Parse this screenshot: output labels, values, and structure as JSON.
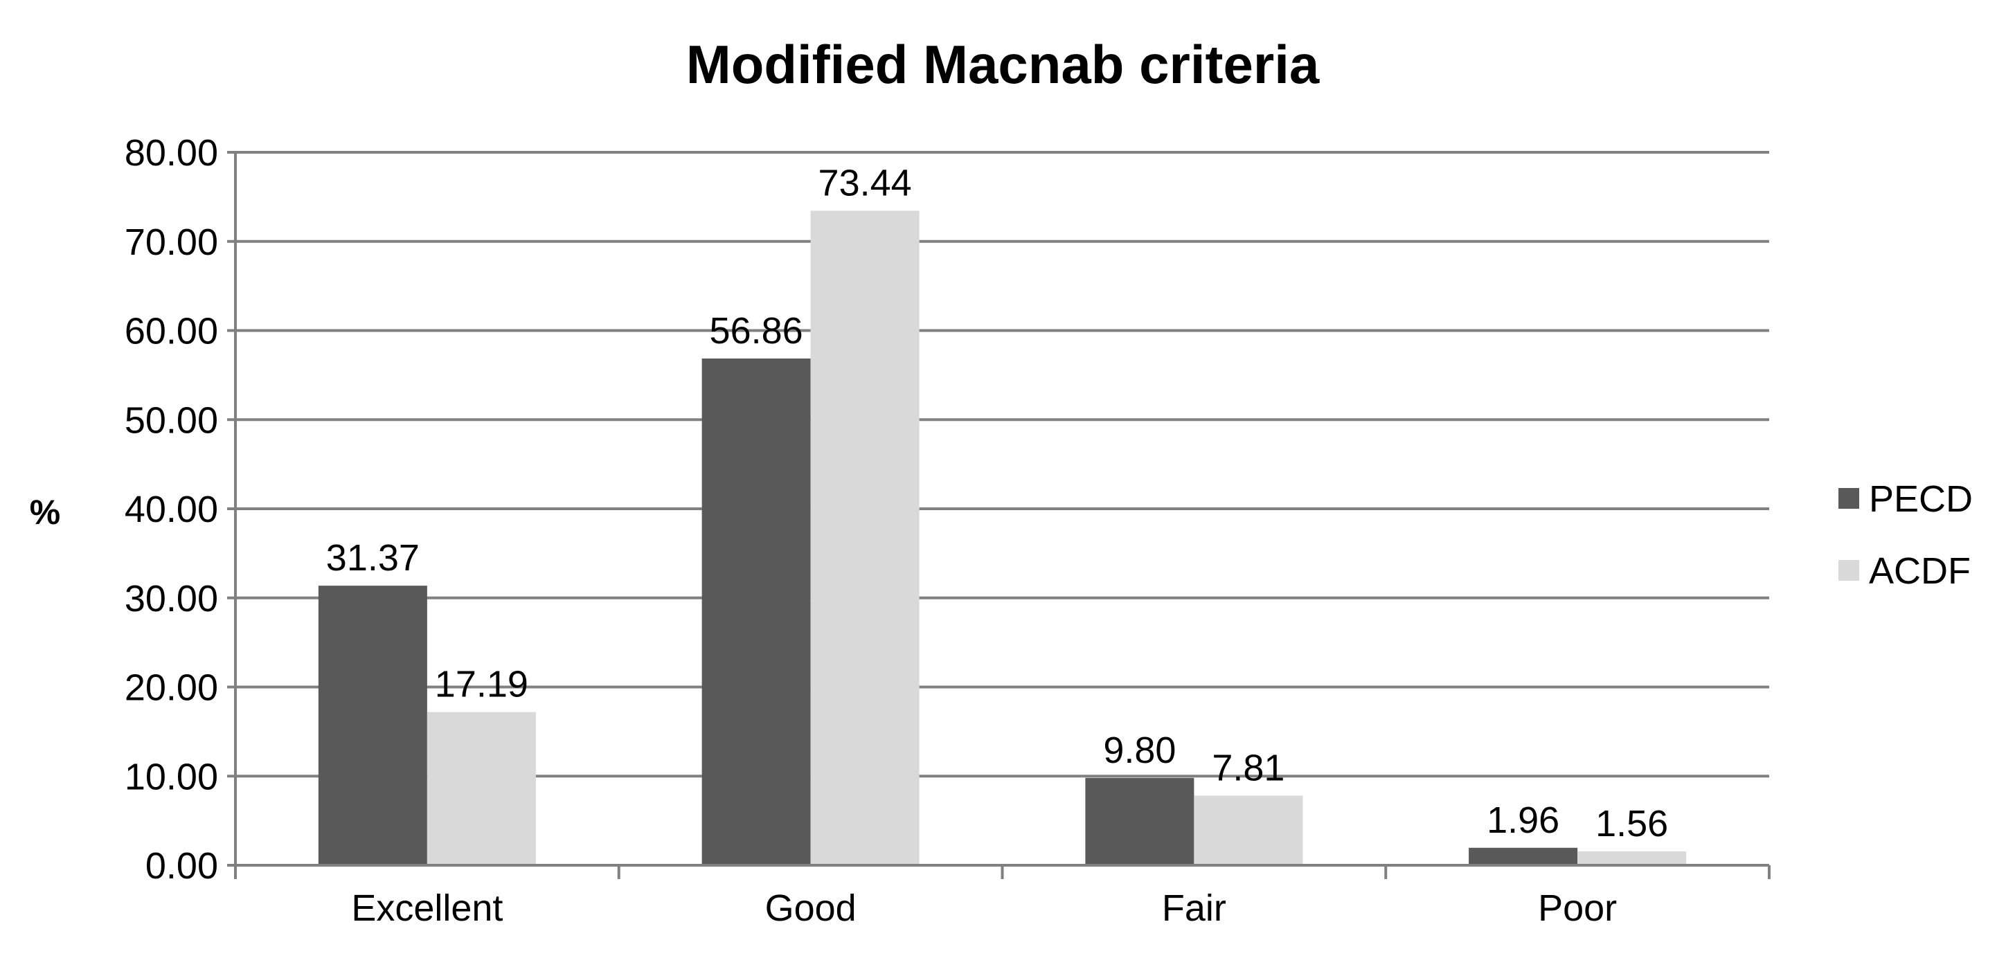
{
  "chart_data": {
    "type": "bar",
    "title": "Modified Macnab criteria",
    "xlabel": "",
    "ylabel": "%",
    "ylim": [
      0,
      80
    ],
    "y_ticks": [
      "0.00",
      "10.00",
      "20.00",
      "30.00",
      "40.00",
      "50.00",
      "60.00",
      "70.00",
      "80.00"
    ],
    "categories": [
      "Excellent",
      "Good",
      "Fair",
      "Poor"
    ],
    "series": [
      {
        "name": "PECD",
        "color": "#595959",
        "values": [
          31.37,
          56.86,
          9.8,
          1.96
        ],
        "labels": [
          "31.37",
          "56.86",
          "9.80",
          "1.96"
        ]
      },
      {
        "name": "ACDF",
        "color": "#d9d9d9",
        "values": [
          17.19,
          73.44,
          7.81,
          1.56
        ],
        "labels": [
          "17.19",
          "73.44",
          "7.81",
          "1.56"
        ]
      }
    ],
    "grid": true,
    "legend_position": "right"
  }
}
